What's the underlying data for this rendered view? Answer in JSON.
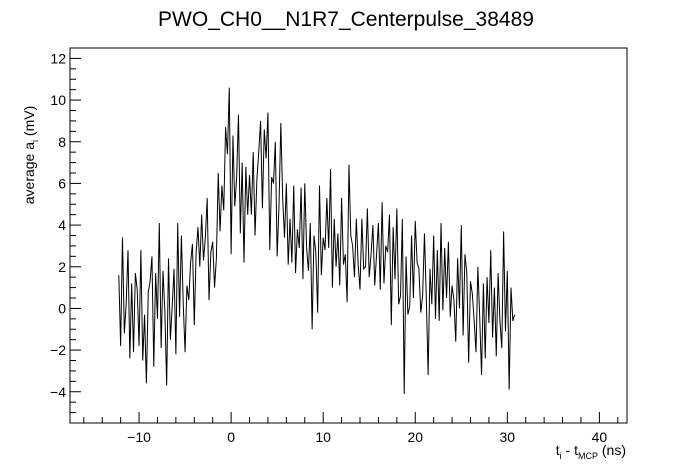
{
  "chart_data": {
    "type": "line",
    "title": "PWO_CH0__N1R7_Centerpulse_38489",
    "xlabel": {
      "base": "t",
      "sub1": "i",
      "mid": " - t",
      "sub2": "MCP",
      "unit": " (ns)"
    },
    "ylabel": {
      "base": "average a",
      "sub": "i",
      "unit": " (mV)"
    },
    "xlim": [
      -17.5,
      43
    ],
    "ylim": [
      -5.5,
      12.5
    ],
    "x_ticks": [
      -10,
      0,
      10,
      20,
      30,
      40
    ],
    "y_ticks": [
      -4,
      -2,
      0,
      2,
      4,
      6,
      8,
      10,
      12
    ],
    "x_tick_labels": [
      "−10",
      "0",
      "10",
      "20",
      "30",
      "40"
    ],
    "y_tick_labels": [
      "−4",
      "−2",
      "0",
      "2",
      "4",
      "6",
      "8",
      "10",
      "12"
    ],
    "grid": false,
    "legend": "none",
    "series": [
      {
        "x_start": -12.2,
        "x_step": 0.2,
        "y": [
          1.6,
          -1.8,
          3.4,
          -1.2,
          0.2,
          2.8,
          -2.4,
          1.2,
          -2.1,
          1.7,
          0.9,
          -1.8,
          2.8,
          -2.5,
          -0.3,
          -3.6,
          0.8,
          1.3,
          2.5,
          -2.8,
          1.7,
          -0.5,
          4.1,
          -1.9,
          1.8,
          -0.1,
          -3.7,
          2.4,
          -1.5,
          0.1,
          1.9,
          -2.2,
          4.1,
          -0.4,
          3.5,
          0.2,
          -2.1,
          1.1,
          0.4,
          2.2,
          3.1,
          -0.8,
          2.7,
          3.9,
          2.0,
          4.5,
          2.3,
          3.4,
          5.3,
          0.4,
          2.7,
          3.2,
          1.0,
          2.4,
          6.5,
          3.7,
          5.9,
          4.7,
          8.7,
          7.4,
          10.6,
          2.6,
          8.3,
          4.9,
          6.3,
          9.3,
          3.6,
          7.0,
          2.2,
          6.8,
          4.5,
          6.4,
          4.5,
          7.5,
          3.5,
          6.2,
          7.5,
          9.0,
          4.8,
          8.6,
          7.2,
          9.4,
          2.8,
          6.3,
          6.0,
          8.0,
          2.5,
          4.9,
          8.9,
          5.3,
          3.4,
          6.0,
          2.1,
          4.3,
          2.2,
          5.9,
          1.7,
          3.8,
          2.9,
          5.8,
          1.4,
          6.0,
          2.9,
          1.8,
          4.1,
          -1.0,
          3.5,
          2.7,
          -0.2,
          5.9,
          1.6,
          3.4,
          2.8,
          5.3,
          2.9,
          6.7,
          1.0,
          4.3,
          2.0,
          3.6,
          1.1,
          5.3,
          2.1,
          2.6,
          0.3,
          6.9,
          3.5,
          3.0,
          1.5,
          4.3,
          2.1,
          0.9,
          4.3,
          1.9,
          2.0,
          4.8,
          1.5,
          2.6,
          4.0,
          1.1,
          2.6,
          4.1,
          0.9,
          5.1,
          1.2,
          3.0,
          2.7,
          4.5,
          -0.8,
          3.9,
          1.4,
          4.8,
          0.2,
          0.6,
          4.3,
          -4.1,
          2.5,
          -0.3,
          0.1,
          3.5,
          0.5,
          4.2,
          2.2,
          1.9,
          -0.2,
          0.6,
          3.6,
          0.5,
          -3.2,
          1.9,
          0.2,
          3.5,
          -0.5,
          2.8,
          -0.6,
          4.1,
          -0.1,
          2.9,
          0.5,
          3.2,
          -0.4,
          1.1,
          0.4,
          -1.6,
          2.4,
          0.0,
          4.0,
          -1.3,
          2.6,
          1.7,
          -2.6,
          1.3,
          0.7,
          -0.6,
          -2.1,
          2.0,
          -0.4,
          -3.2,
          1.2,
          -2.4,
          1.5,
          -0.7,
          2.8,
          -1.4,
          1.0,
          -2.3,
          1.7,
          -0.6,
          -1.9,
          3.7,
          -1.1,
          1.8,
          -3.9,
          1.0,
          -0.6,
          -0.3
        ]
      }
    ]
  }
}
